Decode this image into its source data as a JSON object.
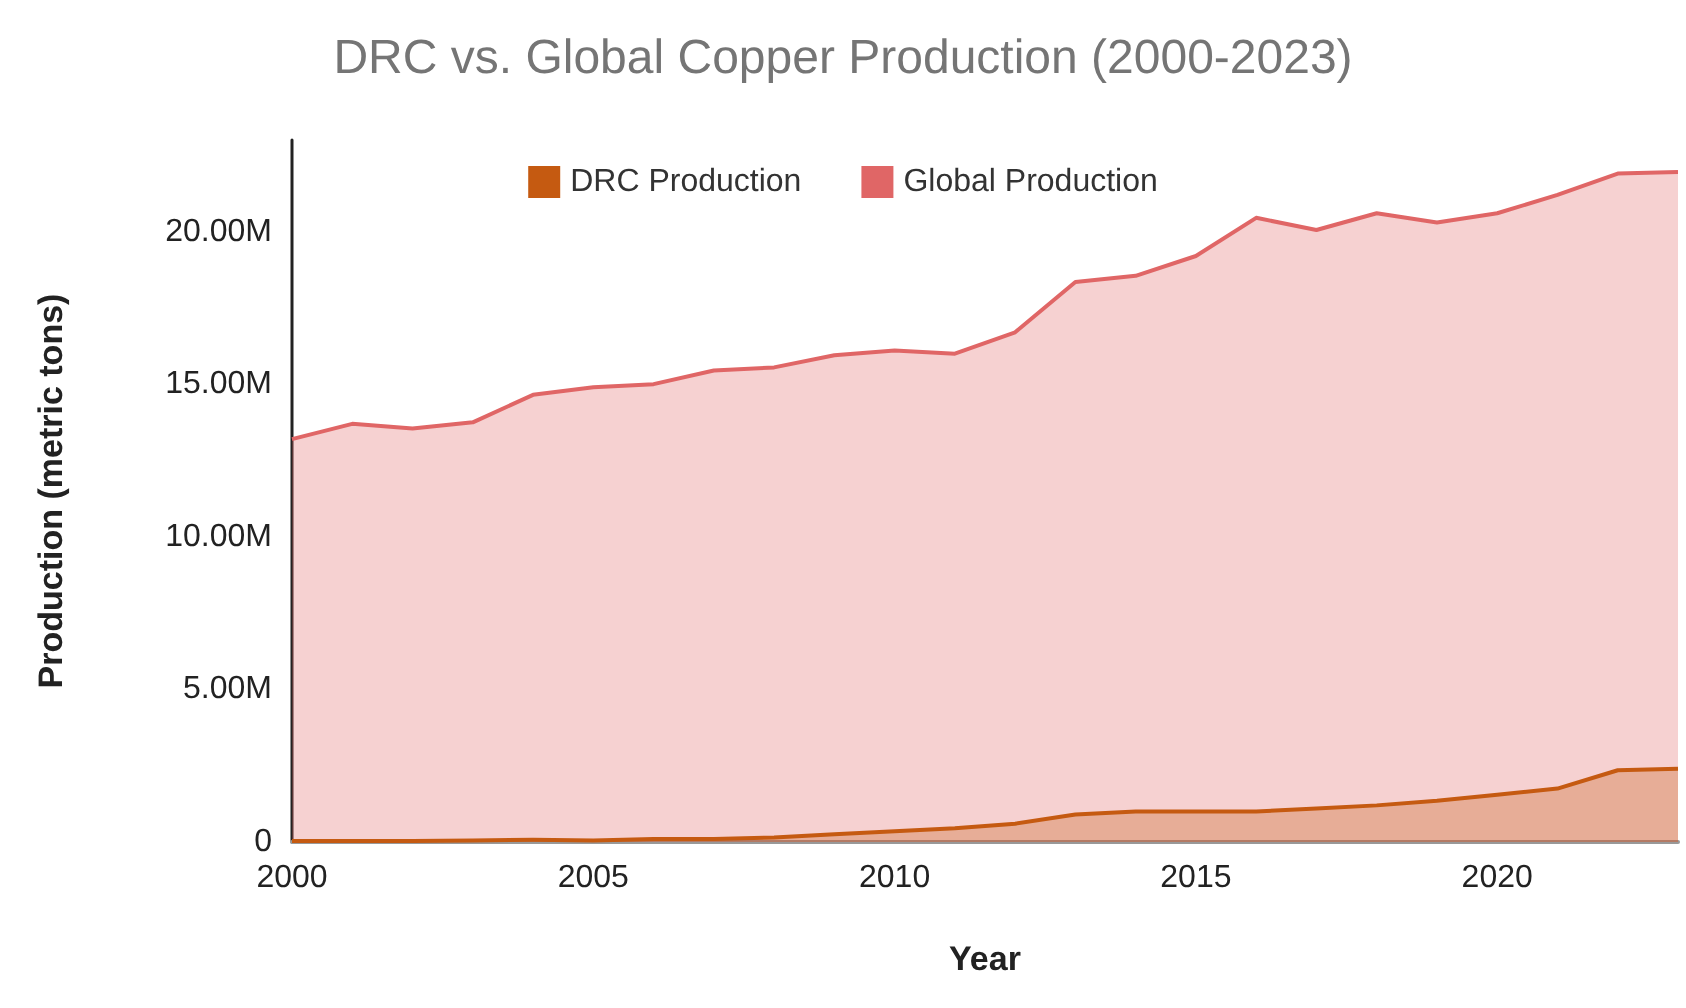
{
  "chart_data": {
    "type": "area",
    "title": "DRC vs. Global Copper Production (2000-2023)",
    "xlabel": "Year",
    "ylabel": "Production (metric tons)",
    "x": [
      2000,
      2001,
      2002,
      2003,
      2004,
      2005,
      2006,
      2007,
      2008,
      2009,
      2010,
      2011,
      2012,
      2013,
      2014,
      2015,
      2016,
      2017,
      2018,
      2019,
      2020,
      2021,
      2022,
      2023
    ],
    "series": [
      {
        "name": "DRC Production",
        "color": "#c55a11",
        "values": [
          30000,
          30000,
          30000,
          50000,
          70000,
          50000,
          100000,
          100000,
          150000,
          250000,
          350000,
          450000,
          600000,
          900000,
          1000000,
          1000000,
          1000000,
          1100000,
          1200000,
          1350000,
          1550000,
          1750000,
          2350000,
          2400000
        ]
      },
      {
        "name": "Global Production",
        "color": "#e06666",
        "values": [
          13200000,
          13700000,
          13550000,
          13750000,
          14650000,
          14900000,
          15000000,
          15450000,
          15550000,
          15950000,
          16100000,
          16000000,
          16700000,
          18350000,
          18550000,
          19200000,
          20450000,
          20050000,
          20600000,
          20300000,
          20600000,
          21200000,
          21900000,
          21950000
        ]
      }
    ],
    "xlim": [
      2000,
      2023
    ],
    "xticks": [
      2000,
      2005,
      2010,
      2015,
      2020
    ],
    "ylim": [
      0,
      23000000
    ],
    "yticks": [
      0,
      {
        "value": 5000000,
        "label": "5.00M"
      },
      {
        "value": 10000000,
        "label": "10.00M"
      },
      {
        "value": 15000000,
        "label": "15.00M"
      },
      {
        "value": 20000000,
        "label": "20.00M"
      }
    ],
    "grid": false,
    "legend": "top",
    "marker": "none",
    "line_style": "solid"
  }
}
